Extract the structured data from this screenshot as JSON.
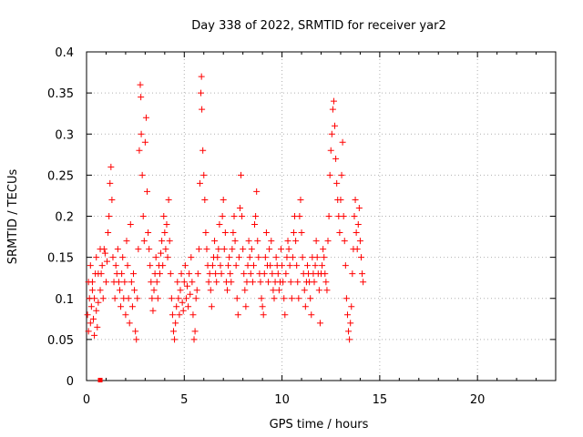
{
  "chart_data": {
    "type": "scatter",
    "title": "Day 338 of 2022, SRMTID for receiver yar2",
    "xlabel": "GPS time / hours",
    "ylabel": "SRMTID / TECUs",
    "xlim": [
      0,
      24
    ],
    "ylim": [
      0,
      0.4
    ],
    "xticks": [
      0,
      5,
      10,
      15,
      20
    ],
    "yticks": [
      0,
      0.05,
      0.1,
      0.15,
      0.2,
      0.25,
      0.3,
      0.35,
      0.4
    ],
    "xtick_labels": [
      "0",
      "5",
      "10",
      "15",
      "20"
    ],
    "ytick_labels": [
      "0",
      "0.05",
      "0.1",
      "0.15",
      "0.2",
      "0.25",
      "0.3",
      "0.35",
      "0.4"
    ],
    "grid": true,
    "marker": "+",
    "color": "#ff0000",
    "series": [
      {
        "name": "yar2",
        "points": [
          [
            0.05,
            0.08
          ],
          [
            0.1,
            0.12
          ],
          [
            0.15,
            0.1
          ],
          [
            0.2,
            0.07
          ],
          [
            0.25,
            0.09
          ],
          [
            0.3,
            0.11
          ],
          [
            0.35,
            0.075
          ],
          [
            0.4,
            0.1
          ],
          [
            0.45,
            0.13
          ],
          [
            0.5,
            0.085
          ],
          [
            0.55,
            0.065
          ],
          [
            0.6,
            0.095
          ],
          [
            0.1,
            0.06
          ],
          [
            0.2,
            0.14
          ],
          [
            0.3,
            0.12
          ],
          [
            0.4,
            0.055
          ],
          [
            0.5,
            0.15
          ],
          [
            0.6,
            0.13
          ],
          [
            0.7,
            0.11
          ],
          [
            0.8,
            0.14
          ],
          [
            0.9,
            0.16
          ],
          [
            1.0,
            0.12
          ],
          [
            1.05,
            0.145
          ],
          [
            1.1,
            0.18
          ],
          [
            0.7,
            0.16
          ],
          [
            0.75,
            0.13
          ],
          [
            0.85,
            0.1
          ],
          [
            0.95,
            0.155
          ],
          [
            1.15,
            0.2
          ],
          [
            1.2,
            0.24
          ],
          [
            1.25,
            0.26
          ],
          [
            1.3,
            0.22
          ],
          [
            1.35,
            0.15
          ],
          [
            1.4,
            0.12
          ],
          [
            1.45,
            0.1
          ],
          [
            1.5,
            0.14
          ],
          [
            1.55,
            0.13
          ],
          [
            1.6,
            0.16
          ],
          [
            1.65,
            0.12
          ],
          [
            1.7,
            0.11
          ],
          [
            1.75,
            0.09
          ],
          [
            1.8,
            0.13
          ],
          [
            1.85,
            0.15
          ],
          [
            1.9,
            0.1
          ],
          [
            1.95,
            0.12
          ],
          [
            2.0,
            0.08
          ],
          [
            2.05,
            0.17
          ],
          [
            2.1,
            0.14
          ],
          [
            2.15,
            0.1
          ],
          [
            2.2,
            0.07
          ],
          [
            2.25,
            0.19
          ],
          [
            2.3,
            0.12
          ],
          [
            2.35,
            0.09
          ],
          [
            2.4,
            0.13
          ],
          [
            2.45,
            0.11
          ],
          [
            2.5,
            0.06
          ],
          [
            2.55,
            0.05
          ],
          [
            2.6,
            0.1
          ],
          [
            2.65,
            0.16
          ],
          [
            2.7,
            0.28
          ],
          [
            2.75,
            0.36
          ],
          [
            2.78,
            0.345
          ],
          [
            2.8,
            0.3
          ],
          [
            2.85,
            0.25
          ],
          [
            2.9,
            0.2
          ],
          [
            2.95,
            0.17
          ],
          [
            3.0,
            0.29
          ],
          [
            3.05,
            0.32
          ],
          [
            3.1,
            0.23
          ],
          [
            3.15,
            0.18
          ],
          [
            3.2,
            0.16
          ],
          [
            3.25,
            0.14
          ],
          [
            3.3,
            0.12
          ],
          [
            3.35,
            0.1
          ],
          [
            3.4,
            0.085
          ],
          [
            3.45,
            0.11
          ],
          [
            3.5,
            0.13
          ],
          [
            3.55,
            0.15
          ],
          [
            3.6,
            0.12
          ],
          [
            3.65,
            0.1
          ],
          [
            3.7,
            0.14
          ],
          [
            3.75,
            0.13
          ],
          [
            3.8,
            0.155
          ],
          [
            3.85,
            0.17
          ],
          [
            3.9,
            0.14
          ],
          [
            3.95,
            0.2
          ],
          [
            4.0,
            0.18
          ],
          [
            4.05,
            0.16
          ],
          [
            4.1,
            0.19
          ],
          [
            4.15,
            0.15
          ],
          [
            4.2,
            0.22
          ],
          [
            4.25,
            0.17
          ],
          [
            4.3,
            0.13
          ],
          [
            4.35,
            0.1
          ],
          [
            4.4,
            0.08
          ],
          [
            4.45,
            0.06
          ],
          [
            4.5,
            0.05
          ],
          [
            4.55,
            0.07
          ],
          [
            4.6,
            0.09
          ],
          [
            4.65,
            0.12
          ],
          [
            4.7,
            0.1
          ],
          [
            4.75,
            0.08
          ],
          [
            4.8,
            0.11
          ],
          [
            4.85,
            0.13
          ],
          [
            4.9,
            0.095
          ],
          [
            4.95,
            0.085
          ],
          [
            5.0,
            0.12
          ],
          [
            5.05,
            0.14
          ],
          [
            5.1,
            0.1
          ],
          [
            5.15,
            0.115
          ],
          [
            5.2,
            0.09
          ],
          [
            5.25,
            0.13
          ],
          [
            5.3,
            0.105
          ],
          [
            5.35,
            0.15
          ],
          [
            5.4,
            0.12
          ],
          [
            5.45,
            0.08
          ],
          [
            5.5,
            0.05
          ],
          [
            5.55,
            0.06
          ],
          [
            5.6,
            0.1
          ],
          [
            5.65,
            0.11
          ],
          [
            5.7,
            0.13
          ],
          [
            5.75,
            0.16
          ],
          [
            5.8,
            0.24
          ],
          [
            5.85,
            0.35
          ],
          [
            5.88,
            0.37
          ],
          [
            5.9,
            0.33
          ],
          [
            5.95,
            0.28
          ],
          [
            6.0,
            0.25
          ],
          [
            6.05,
            0.22
          ],
          [
            6.1,
            0.18
          ],
          [
            6.15,
            0.16
          ],
          [
            6.2,
            0.14
          ],
          [
            6.25,
            0.12
          ],
          [
            6.3,
            0.13
          ],
          [
            6.35,
            0.11
          ],
          [
            6.4,
            0.09
          ],
          [
            6.45,
            0.14
          ],
          [
            6.5,
            0.15
          ],
          [
            6.55,
            0.17
          ],
          [
            6.6,
            0.13
          ],
          [
            6.65,
            0.12
          ],
          [
            6.7,
            0.15
          ],
          [
            6.75,
            0.16
          ],
          [
            6.8,
            0.19
          ],
          [
            6.85,
            0.14
          ],
          [
            6.9,
            0.13
          ],
          [
            6.95,
            0.2
          ],
          [
            7.0,
            0.22
          ],
          [
            7.05,
            0.16
          ],
          [
            7.1,
            0.18
          ],
          [
            7.15,
            0.12
          ],
          [
            7.2,
            0.11
          ],
          [
            7.25,
            0.14
          ],
          [
            7.3,
            0.15
          ],
          [
            7.35,
            0.13
          ],
          [
            7.4,
            0.12
          ],
          [
            7.45,
            0.16
          ],
          [
            7.5,
            0.18
          ],
          [
            7.55,
            0.2
          ],
          [
            7.6,
            0.17
          ],
          [
            7.65,
            0.14
          ],
          [
            7.7,
            0.1
          ],
          [
            7.75,
            0.08
          ],
          [
            7.8,
            0.15
          ],
          [
            7.85,
            0.21
          ],
          [
            7.9,
            0.25
          ],
          [
            7.95,
            0.2
          ],
          [
            8.0,
            0.16
          ],
          [
            8.05,
            0.13
          ],
          [
            8.1,
            0.11
          ],
          [
            8.15,
            0.09
          ],
          [
            8.2,
            0.12
          ],
          [
            8.25,
            0.14
          ],
          [
            8.3,
            0.17
          ],
          [
            8.35,
            0.15
          ],
          [
            8.4,
            0.13
          ],
          [
            8.45,
            0.16
          ],
          [
            8.5,
            0.12
          ],
          [
            8.55,
            0.14
          ],
          [
            8.6,
            0.19
          ],
          [
            8.65,
            0.2
          ],
          [
            8.7,
            0.23
          ],
          [
            8.75,
            0.17
          ],
          [
            8.8,
            0.15
          ],
          [
            8.85,
            0.13
          ],
          [
            8.9,
            0.12
          ],
          [
            8.95,
            0.1
          ],
          [
            9.0,
            0.09
          ],
          [
            9.05,
            0.08
          ],
          [
            9.1,
            0.13
          ],
          [
            9.15,
            0.15
          ],
          [
            9.2,
            0.18
          ],
          [
            9.25,
            0.14
          ],
          [
            9.3,
            0.12
          ],
          [
            9.35,
            0.16
          ],
          [
            9.4,
            0.14
          ],
          [
            9.45,
            0.17
          ],
          [
            9.5,
            0.13
          ],
          [
            9.55,
            0.11
          ],
          [
            9.6,
            0.1
          ],
          [
            9.65,
            0.12
          ],
          [
            9.7,
            0.15
          ],
          [
            9.75,
            0.14
          ],
          [
            9.8,
            0.13
          ],
          [
            9.85,
            0.11
          ],
          [
            9.9,
            0.12
          ],
          [
            9.95,
            0.16
          ],
          [
            10.0,
            0.14
          ],
          [
            10.05,
            0.12
          ],
          [
            10.1,
            0.1
          ],
          [
            10.15,
            0.08
          ],
          [
            10.2,
            0.13
          ],
          [
            10.25,
            0.15
          ],
          [
            10.3,
            0.17
          ],
          [
            10.35,
            0.16
          ],
          [
            10.4,
            0.14
          ],
          [
            10.45,
            0.12
          ],
          [
            10.5,
            0.1
          ],
          [
            10.55,
            0.15
          ],
          [
            10.6,
            0.18
          ],
          [
            10.65,
            0.2
          ],
          [
            10.7,
            0.17
          ],
          [
            10.75,
            0.14
          ],
          [
            10.8,
            0.12
          ],
          [
            10.85,
            0.1
          ],
          [
            10.9,
            0.2
          ],
          [
            10.95,
            0.22
          ],
          [
            11.0,
            0.18
          ],
          [
            11.05,
            0.15
          ],
          [
            11.1,
            0.13
          ],
          [
            11.15,
            0.11
          ],
          [
            11.2,
            0.09
          ],
          [
            11.25,
            0.12
          ],
          [
            11.3,
            0.14
          ],
          [
            11.35,
            0.13
          ],
          [
            11.4,
            0.12
          ],
          [
            11.45,
            0.1
          ],
          [
            11.5,
            0.08
          ],
          [
            11.55,
            0.15
          ],
          [
            11.6,
            0.13
          ],
          [
            11.65,
            0.12
          ],
          [
            11.7,
            0.14
          ],
          [
            11.75,
            0.17
          ],
          [
            11.8,
            0.15
          ],
          [
            11.85,
            0.13
          ],
          [
            11.9,
            0.11
          ],
          [
            11.95,
            0.07
          ],
          [
            12.0,
            0.13
          ],
          [
            12.05,
            0.14
          ],
          [
            12.1,
            0.16
          ],
          [
            12.15,
            0.15
          ],
          [
            12.2,
            0.13
          ],
          [
            12.25,
            0.12
          ],
          [
            12.3,
            0.11
          ],
          [
            12.35,
            0.17
          ],
          [
            12.4,
            0.2
          ],
          [
            12.45,
            0.25
          ],
          [
            12.5,
            0.28
          ],
          [
            12.55,
            0.3
          ],
          [
            12.6,
            0.33
          ],
          [
            12.65,
            0.34
          ],
          [
            12.7,
            0.31
          ],
          [
            12.75,
            0.27
          ],
          [
            12.8,
            0.24
          ],
          [
            12.85,
            0.22
          ],
          [
            12.9,
            0.2
          ],
          [
            12.95,
            0.18
          ],
          [
            13.0,
            0.22
          ],
          [
            13.05,
            0.25
          ],
          [
            13.1,
            0.29
          ],
          [
            13.15,
            0.2
          ],
          [
            13.2,
            0.17
          ],
          [
            13.25,
            0.14
          ],
          [
            13.3,
            0.1
          ],
          [
            13.35,
            0.08
          ],
          [
            13.4,
            0.06
          ],
          [
            13.45,
            0.05
          ],
          [
            13.5,
            0.07
          ],
          [
            13.55,
            0.09
          ],
          [
            13.6,
            0.13
          ],
          [
            13.65,
            0.16
          ],
          [
            13.7,
            0.2
          ],
          [
            13.75,
            0.22
          ],
          [
            13.8,
            0.18
          ],
          [
            13.85,
            0.16
          ],
          [
            13.9,
            0.19
          ],
          [
            13.95,
            0.21
          ],
          [
            14.0,
            0.17
          ],
          [
            14.05,
            0.15
          ],
          [
            14.1,
            0.13
          ],
          [
            14.15,
            0.12
          ]
        ]
      }
    ],
    "outlier_marker": {
      "x": 0.7,
      "y": 0
    }
  }
}
